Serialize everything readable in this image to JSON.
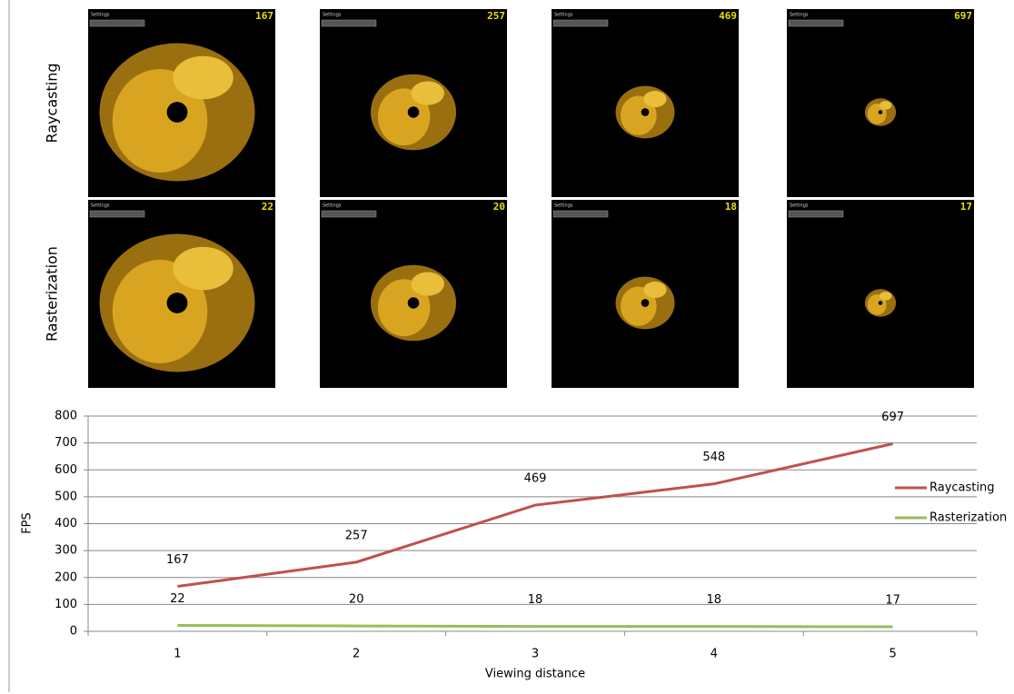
{
  "screenshots": {
    "menu_label": "Settings",
    "rows": [
      {
        "label": "Raycasting",
        "fps": [
          167,
          257,
          469,
          697
        ]
      },
      {
        "label": "Rasterization",
        "fps": [
          22,
          20,
          18,
          17
        ]
      }
    ]
  },
  "chart_data": {
    "type": "line",
    "x_label": "Viewing distance",
    "y_label": "FPS",
    "categories": [
      "1",
      "2",
      "3",
      "4",
      "5"
    ],
    "series": [
      {
        "name": "Raycasting",
        "color": "#c0504d",
        "values": [
          167,
          257,
          469,
          548,
          697
        ]
      },
      {
        "name": "Rasterization",
        "color": "#9bbb59",
        "values": [
          22,
          20,
          18,
          18,
          17
        ]
      }
    ],
    "ylim": [
      0,
      800
    ],
    "yticks": [
      0,
      100,
      200,
      300,
      400,
      500,
      600,
      700,
      800
    ],
    "grid": true,
    "legend": "right"
  }
}
